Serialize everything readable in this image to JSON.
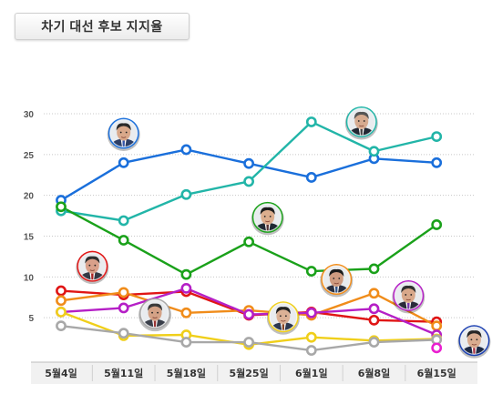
{
  "title": "차기 대선 후보 지지율",
  "chart_data": {
    "type": "line",
    "title": "차기 대선 후보 지지율",
    "xlabel": "",
    "ylabel": "",
    "categories": [
      "5월4일",
      "5월11일",
      "5월18일",
      "5월25일",
      "6월1일",
      "6월8일",
      "6월15일"
    ],
    "yticks": [
      5,
      10,
      15,
      20,
      25,
      30
    ],
    "ylim": [
      0,
      30
    ],
    "grid": true,
    "series": [
      {
        "color": "#1a6fdb",
        "values": [
          19.4,
          24.0,
          25.6,
          23.9,
          22.2,
          24.5,
          24.0
        ]
      },
      {
        "color": "#22b5a8",
        "values": [
          18.1,
          16.9,
          20.1,
          21.7,
          29.0,
          25.4,
          27.2
        ]
      },
      {
        "color": "#1aa11a",
        "values": [
          18.6,
          14.5,
          10.3,
          14.3,
          10.7,
          11.0,
          16.4
        ]
      },
      {
        "color": "#e01515",
        "values": [
          8.3,
          7.8,
          8.2,
          5.3,
          5.7,
          4.7,
          4.5
        ]
      },
      {
        "color": "#f08c1a",
        "values": [
          7.1,
          8.1,
          5.6,
          5.9,
          5.3,
          8.0,
          4.0
        ]
      },
      {
        "color": "#b51fc6",
        "values": [
          5.7,
          6.2,
          8.6,
          5.4,
          5.6,
          6.1,
          2.9
        ]
      },
      {
        "color": "#f0cf1a",
        "values": [
          5.7,
          2.8,
          2.9,
          1.7,
          2.6,
          2.2,
          2.4
        ]
      },
      {
        "color": "#a8a8a8",
        "values": [
          4.0,
          3.1,
          2.0,
          2.0,
          1.0,
          2.0,
          2.3
        ]
      },
      {
        "color": "#ea1fd0",
        "values": [
          null,
          null,
          null,
          null,
          null,
          null,
          1.3
        ]
      }
    ]
  },
  "portraits": [
    {
      "name": "portrait-blue-candidate-icon",
      "x": 1,
      "y": 27.6,
      "ring": "#1a6fdb",
      "skin": "#d9a88a",
      "hair": "#2a2a2a",
      "suit": "#2c3e66",
      "tie": "#3355aa"
    },
    {
      "name": "portrait-teal-candidate-icon",
      "x": 4.8,
      "y": 29.0,
      "ring": "#22b5a8",
      "skin": "#d6ab90",
      "hair": "#555555",
      "suit": "#222833",
      "tie": "#444444"
    },
    {
      "name": "portrait-green-candidate-icon",
      "x": 3.3,
      "y": 17.3,
      "ring": "#1aa11a",
      "skin": "#dcae8e",
      "hair": "#1d1d1d",
      "suit": "#1f2933",
      "tie": "#553333"
    },
    {
      "name": "portrait-red-candidate-icon",
      "x": 0.5,
      "y": 11.3,
      "ring": "#e01515",
      "skin": "#d9a08a",
      "hair": "#2e2e2e",
      "suit": "#333844",
      "tie": "#aa2222"
    },
    {
      "name": "portrait-orange-candidate-icon",
      "x": 4.4,
      "y": 9.7,
      "ring": "#f08c1a",
      "skin": "#cf9b80",
      "hair": "#1b1b1b",
      "suit": "#2b3040",
      "tie": "#335588"
    },
    {
      "name": "portrait-purple-candidate-icon",
      "x": 5.55,
      "y": 7.7,
      "ring": "#b51fc6",
      "skin": "#d8a88a",
      "hair": "#303030",
      "suit": "#2a2a3a",
      "tie": "#7733aa"
    },
    {
      "name": "portrait-gray-candidate-icon",
      "x": 1.5,
      "y": 5.5,
      "ring": "#a8a8a8",
      "skin": "#d4a286",
      "hair": "#3a3a3a",
      "suit": "#3a3f4a",
      "tie": "#993333"
    },
    {
      "name": "portrait-yellow-candidate-icon",
      "x": 3.55,
      "y": 5.1,
      "ring": "#f0cf1a",
      "skin": "#dbb196",
      "hair": "#222222",
      "suit": "#2d3850",
      "tie": "#884422"
    },
    {
      "name": "portrait-navy-candidate-icon",
      "x": 6.6,
      "y": 2.2,
      "ring": "#1a3fb0",
      "skin": "#d9ac90",
      "hair": "#262626",
      "suit": "#1e2a44",
      "tie": "#aa3344"
    }
  ]
}
